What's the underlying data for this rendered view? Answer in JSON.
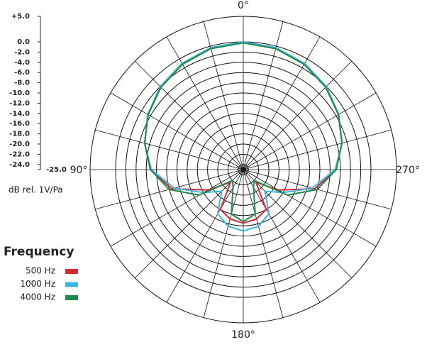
{
  "chart_data": {
    "type": "polar",
    "rlim": [
      -25,
      5
    ],
    "rticks": [
      {
        "value": 5,
        "label": "+5.0"
      },
      {
        "value": 0,
        "label": "0.0"
      },
      {
        "value": -2,
        "label": "-2.0"
      },
      {
        "value": -4,
        "label": "-4.0"
      },
      {
        "value": -6,
        "label": "-6.0"
      },
      {
        "value": -8,
        "label": "-8.0"
      },
      {
        "value": -10,
        "label": "-10.0"
      },
      {
        "value": -12,
        "label": "-12.0"
      },
      {
        "value": -14,
        "label": "-14.0"
      },
      {
        "value": -16,
        "label": "-16.0"
      },
      {
        "value": -18,
        "label": "-18.0"
      },
      {
        "value": -20,
        "label": "-20.0"
      },
      {
        "value": -22,
        "label": "-22.0"
      },
      {
        "value": -24,
        "label": "-24.0"
      },
      {
        "value": -25,
        "label": "-25.0"
      }
    ],
    "r_label": "dB rel. 1V/Pa",
    "angle_ticks": [
      {
        "value": 0,
        "label": "0°"
      },
      {
        "value": 90,
        "label": "90°"
      },
      {
        "value": 180,
        "label": "180°"
      },
      {
        "value": 270,
        "label": "270°"
      }
    ],
    "theta": [
      0,
      15,
      30,
      45,
      60,
      75,
      90,
      105,
      120,
      135,
      150,
      165,
      180,
      195,
      210,
      225,
      240,
      255,
      270,
      285,
      300,
      315,
      330,
      345
    ],
    "legend_title": "Frequency",
    "series": [
      {
        "name": "500 Hz",
        "color": "#d42a34",
        "values": [
          0,
          -0.3,
          -1,
          -2,
          -3.5,
          -5,
          -6.8,
          -10.5,
          -17,
          -21.5,
          -16,
          -15,
          -14.5,
          -15,
          -16,
          -21.5,
          -17,
          -10.5,
          -6.8,
          -5,
          -3.5,
          -2,
          -1,
          -0.3
        ]
      },
      {
        "name": "1000 Hz",
        "color": "#3bb6e0",
        "values": [
          0,
          -0.3,
          -1,
          -2,
          -3.4,
          -5,
          -7,
          -11,
          -16,
          -19,
          -15,
          -13.5,
          -13,
          -13.5,
          -15,
          -19,
          -16,
          -11,
          -7,
          -5,
          -3.4,
          -2,
          -1,
          -0.3
        ]
      },
      {
        "name": "4000 Hz",
        "color": "#1f8a4c",
        "values": [
          -0.2,
          -0.5,
          -1.2,
          -2.2,
          -3.5,
          -5,
          -6.8,
          -10,
          -15,
          -22,
          -21,
          -16,
          -14.8,
          -16,
          -21,
          -22,
          -15,
          -10,
          -6.8,
          -5,
          -3.5,
          -2.2,
          -1.2,
          -0.5
        ]
      }
    ]
  }
}
